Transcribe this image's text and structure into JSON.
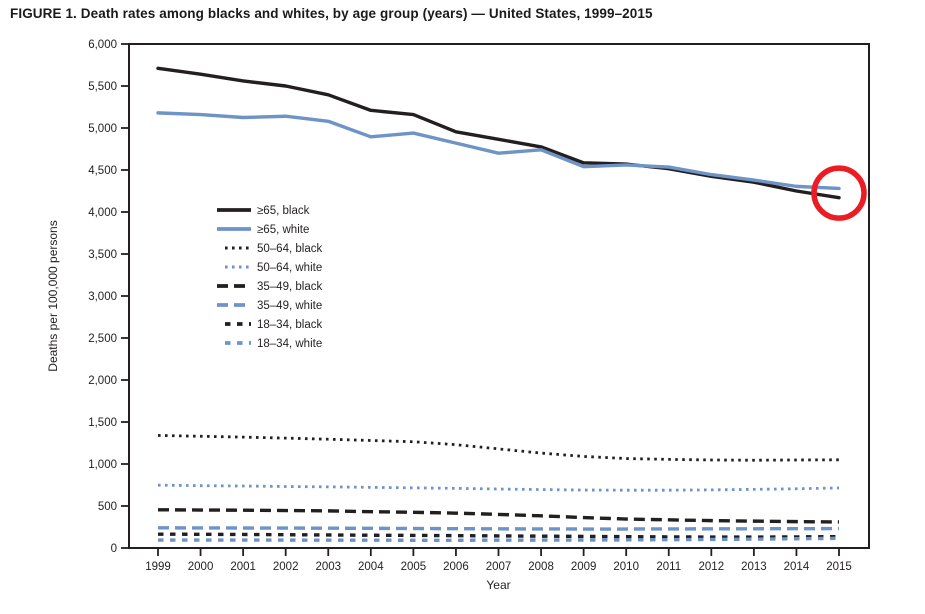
{
  "title": "FIGURE 1. Death rates among blacks and whites, by age group (years) — United States, 1999–2015",
  "colors": {
    "black_series": "#231f20",
    "white_series": "#6e93c6",
    "annotation_red": "#ec1c24",
    "axis": "#231f20"
  },
  "chart_data": {
    "type": "line",
    "title": "FIGURE 1. Death rates among blacks and whites, by age group (years) — United States, 1999–2015",
    "xlabel": "Year",
    "ylabel": "Deaths per 100,000 persons",
    "x": [
      1999,
      2000,
      2001,
      2002,
      2003,
      2004,
      2005,
      2006,
      2007,
      2008,
      2009,
      2010,
      2011,
      2012,
      2013,
      2014,
      2015
    ],
    "ylim": [
      0,
      6000
    ],
    "ytick_step": 500,
    "ytick_labels": [
      "0",
      "500",
      "1,000",
      "1,500",
      "2,000",
      "2,500",
      "3,000",
      "3,500",
      "4,000",
      "4,500",
      "5,000",
      "5,500",
      "6,000"
    ],
    "grid": false,
    "legend_position": "inside-upper-left",
    "series": [
      {
        "key": "ge65_black",
        "label": "≥65, black",
        "group": "black",
        "line_style": "solid",
        "values": [
          5710,
          5640,
          5560,
          5500,
          5395,
          5210,
          5160,
          4955,
          4865,
          4775,
          4585,
          4570,
          4515,
          4425,
          4355,
          4250,
          4170
        ]
      },
      {
        "key": "ge65_white",
        "label": "≥65, white",
        "group": "white",
        "line_style": "solid",
        "values": [
          5180,
          5160,
          5125,
          5140,
          5080,
          4895,
          4940,
          4820,
          4700,
          4740,
          4540,
          4560,
          4535,
          4445,
          4380,
          4305,
          4280
        ]
      },
      {
        "key": "50_64_black",
        "label": "50–64, black",
        "group": "black",
        "line_style": "dotted",
        "values": [
          1340,
          1330,
          1320,
          1308,
          1295,
          1280,
          1265,
          1230,
          1180,
          1130,
          1090,
          1065,
          1055,
          1048,
          1045,
          1048,
          1050
        ]
      },
      {
        "key": "50_64_white",
        "label": "50–64, white",
        "group": "white",
        "line_style": "dotted",
        "values": [
          748,
          742,
          738,
          732,
          728,
          722,
          716,
          710,
          702,
          696,
          690,
          688,
          688,
          692,
          698,
          705,
          715
        ]
      },
      {
        "key": "35_49_black",
        "label": "35–49, black",
        "group": "black",
        "line_style": "dashed",
        "values": [
          455,
          452,
          450,
          446,
          442,
          432,
          425,
          415,
          400,
          383,
          362,
          345,
          335,
          326,
          320,
          314,
          310
        ]
      },
      {
        "key": "35_49_white",
        "label": "35–49, white",
        "group": "white",
        "line_style": "dashed",
        "values": [
          240,
          239,
          238,
          237,
          236,
          234,
          232,
          230,
          228,
          227,
          226,
          226,
          227,
          228,
          229,
          230,
          231
        ]
      },
      {
        "key": "18_34_black",
        "label": "18–34, black",
        "group": "black",
        "line_style": "short-dash",
        "values": [
          165,
          163,
          161,
          158,
          155,
          152,
          150,
          147,
          144,
          141,
          138,
          135,
          132,
          130,
          130,
          132,
          135
        ]
      },
      {
        "key": "18_34_white",
        "label": "18–34, white",
        "group": "white",
        "line_style": "short-dash",
        "values": [
          95,
          95,
          94,
          94,
          93,
          93,
          92,
          92,
          93,
          94,
          95,
          97,
          99,
          102,
          105,
          110,
          115
        ]
      }
    ],
    "annotation": {
      "shape": "circle",
      "x_year": 2015,
      "y_value": 4225
    }
  }
}
